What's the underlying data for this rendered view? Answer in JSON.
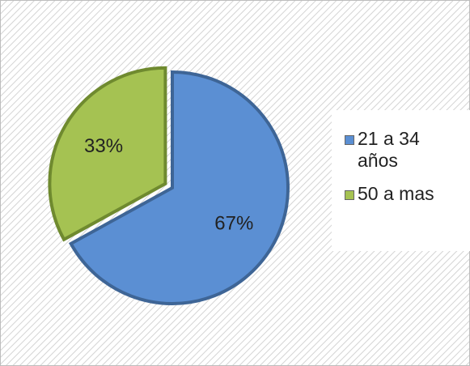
{
  "chart_data": {
    "type": "pie",
    "categories": [
      "21 a 34 años",
      "50 a mas"
    ],
    "values": [
      67,
      33
    ],
    "value_labels": [
      "67%",
      "33%"
    ],
    "colors": [
      "#5b8fd3",
      "#a5c252"
    ],
    "legend": "right"
  }
}
